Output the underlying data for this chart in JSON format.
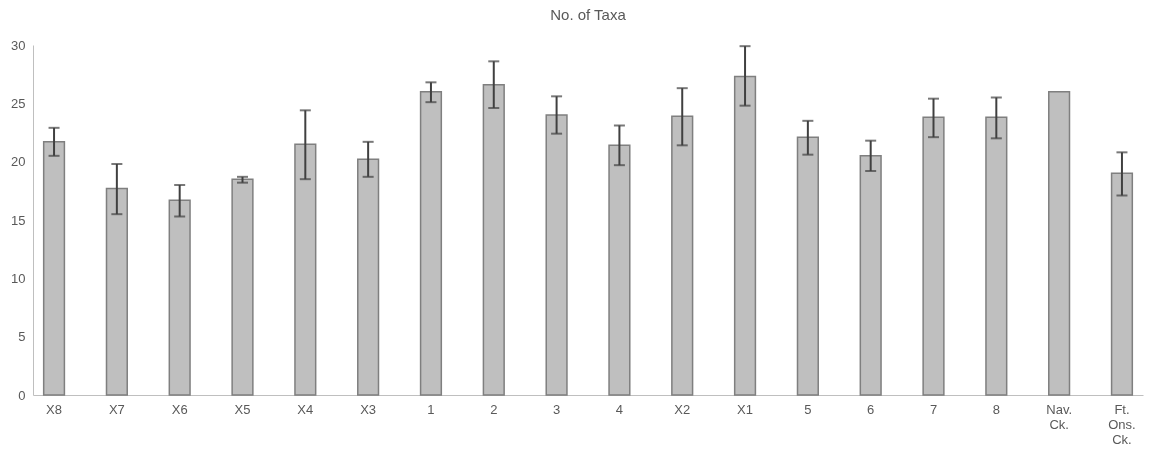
{
  "chart_data": {
    "type": "bar",
    "title": "No. of Taxa",
    "categories": [
      "X8",
      "X7",
      "X6",
      "X5",
      "X4",
      "X3",
      "1",
      "2",
      "3",
      "4",
      "X2",
      "X1",
      "5",
      "6",
      "7",
      "8",
      "Nav. Ck.",
      "Ft. Ons. Ck."
    ],
    "values": [
      21.7,
      17.7,
      16.7,
      18.5,
      21.5,
      20.2,
      26.0,
      26.6,
      24.0,
      21.4,
      23.9,
      27.3,
      22.1,
      20.5,
      23.8,
      23.8,
      26.0,
      19.0
    ],
    "errors": [
      [
        20.5,
        22.9
      ],
      [
        15.5,
        19.8
      ],
      [
        15.3,
        18.0
      ],
      [
        18.2,
        18.7
      ],
      [
        18.5,
        24.4
      ],
      [
        18.7,
        21.7
      ],
      [
        25.1,
        26.8
      ],
      [
        24.6,
        28.6
      ],
      [
        22.4,
        25.6
      ],
      [
        19.7,
        23.1
      ],
      [
        21.4,
        26.3
      ],
      [
        24.8,
        29.9
      ],
      [
        20.6,
        23.5
      ],
      [
        19.2,
        21.8
      ],
      [
        22.1,
        25.4
      ],
      [
        22.0,
        25.5
      ],
      null,
      [
        17.1,
        20.8
      ]
    ],
    "color": "#bfbfbf",
    "ylim": [
      0,
      30
    ],
    "yticks": [
      0,
      5,
      10,
      15,
      20,
      25,
      30
    ],
    "grid": false
  }
}
